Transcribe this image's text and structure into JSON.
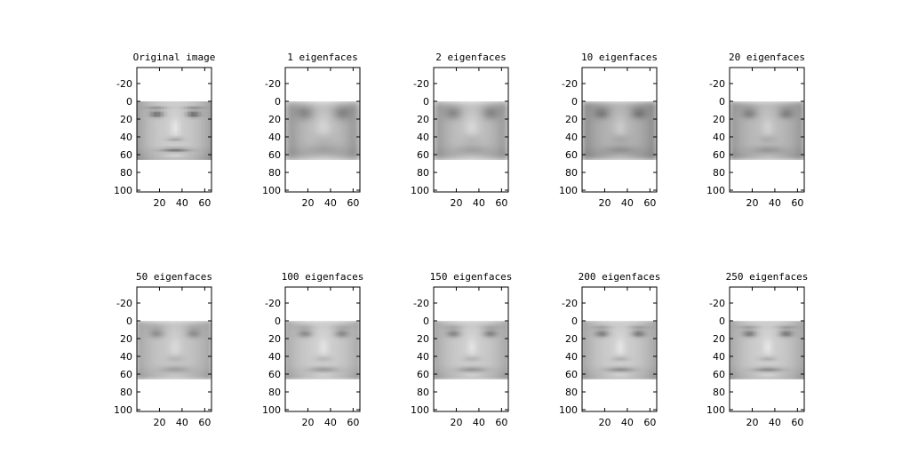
{
  "chart_data": {
    "type": "image-grid",
    "image_width": 66,
    "image_height": 66,
    "xlim": [
      0,
      66
    ],
    "ylim": [
      -38,
      102
    ],
    "y_reversed": true,
    "grid": false,
    "xticks": [
      20,
      40,
      60
    ],
    "yticks": [
      -20,
      0,
      20,
      40,
      60,
      80,
      100
    ],
    "panels": [
      {
        "title": "Original image",
        "eigenfaces": null,
        "blur": 0.6,
        "contrast": 1.0,
        "mean": 175
      },
      {
        "title": "1 eigenfaces",
        "eigenfaces": 1,
        "blur": 4.5,
        "contrast": 1.3,
        "mean": 155
      },
      {
        "title": "2 eigenfaces",
        "eigenfaces": 2,
        "blur": 4.0,
        "contrast": 1.2,
        "mean": 160
      },
      {
        "title": "10 eigenfaces",
        "eigenfaces": 10,
        "blur": 3.2,
        "contrast": 1.1,
        "mean": 150
      },
      {
        "title": "20 eigenfaces",
        "eigenfaces": 20,
        "blur": 2.8,
        "contrast": 1.0,
        "mean": 160
      },
      {
        "title": "50 eigenfaces",
        "eigenfaces": 50,
        "blur": 2.3,
        "contrast": 0.85,
        "mean": 175
      },
      {
        "title": "100 eigenfaces",
        "eigenfaces": 100,
        "blur": 1.8,
        "contrast": 0.9,
        "mean": 180
      },
      {
        "title": "150 eigenfaces",
        "eigenfaces": 150,
        "blur": 1.5,
        "contrast": 0.92,
        "mean": 178
      },
      {
        "title": "200 eigenfaces",
        "eigenfaces": 200,
        "blur": 1.3,
        "contrast": 0.95,
        "mean": 178
      },
      {
        "title": "250 eigenfaces",
        "eigenfaces": 250,
        "blur": 1.1,
        "contrast": 0.95,
        "mean": 178
      }
    ],
    "colormap": "gray"
  }
}
